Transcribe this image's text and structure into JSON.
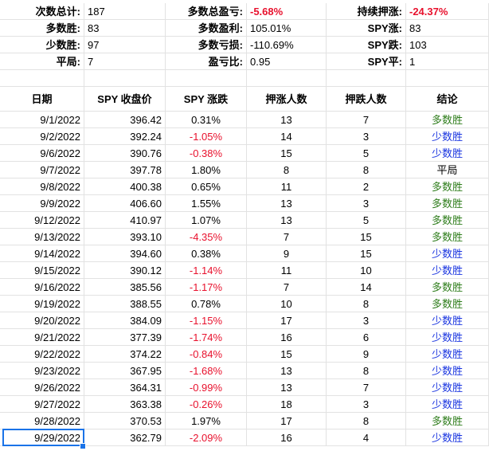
{
  "summary": [
    {
      "l1": "次数总计:",
      "v1": "187",
      "l2": "多数总盈亏:",
      "v2": "-5.68%",
      "l3": "持续押涨:",
      "v3": "-24.37%"
    },
    {
      "l1": "多数胜:",
      "v1": "83",
      "l2": "多数盈利:",
      "v2": "105.01%",
      "l3": "SPY涨:",
      "v3": "83"
    },
    {
      "l1": "少数胜:",
      "v1": "97",
      "l2": "多数亏损:",
      "v2": "-110.69%",
      "l3": "SPY跌:",
      "v3": "103"
    },
    {
      "l1": "平局:",
      "v1": "7",
      "l2": "盈亏比:",
      "v2": "0.95",
      "l3": "SPY平:",
      "v3": "1"
    }
  ],
  "table": {
    "headers": [
      "日期",
      "SPY 收盘价",
      "SPY 涨跌",
      "押涨人数",
      "押跌人数",
      "结论"
    ],
    "rows": [
      {
        "date": "9/1/2022",
        "close": "396.42",
        "change": "0.31%",
        "up": "13",
        "down": "7",
        "result": "多数胜"
      },
      {
        "date": "9/2/2022",
        "close": "392.24",
        "change": "-1.05%",
        "up": "14",
        "down": "3",
        "result": "少数胜"
      },
      {
        "date": "9/6/2022",
        "close": "390.76",
        "change": "-0.38%",
        "up": "15",
        "down": "5",
        "result": "少数胜"
      },
      {
        "date": "9/7/2022",
        "close": "397.78",
        "change": "1.80%",
        "up": "8",
        "down": "8",
        "result": "平局"
      },
      {
        "date": "9/8/2022",
        "close": "400.38",
        "change": "0.65%",
        "up": "11",
        "down": "2",
        "result": "多数胜"
      },
      {
        "date": "9/9/2022",
        "close": "406.60",
        "change": "1.55%",
        "up": "13",
        "down": "3",
        "result": "多数胜"
      },
      {
        "date": "9/12/2022",
        "close": "410.97",
        "change": "1.07%",
        "up": "13",
        "down": "5",
        "result": "多数胜"
      },
      {
        "date": "9/13/2022",
        "close": "393.10",
        "change": "-4.35%",
        "up": "7",
        "down": "15",
        "result": "多数胜"
      },
      {
        "date": "9/14/2022",
        "close": "394.60",
        "change": "0.38%",
        "up": "9",
        "down": "15",
        "result": "少数胜"
      },
      {
        "date": "9/15/2022",
        "close": "390.12",
        "change": "-1.14%",
        "up": "11",
        "down": "10",
        "result": "少数胜"
      },
      {
        "date": "9/16/2022",
        "close": "385.56",
        "change": "-1.17%",
        "up": "7",
        "down": "14",
        "result": "多数胜"
      },
      {
        "date": "9/19/2022",
        "close": "388.55",
        "change": "0.78%",
        "up": "10",
        "down": "8",
        "result": "多数胜"
      },
      {
        "date": "9/20/2022",
        "close": "384.09",
        "change": "-1.15%",
        "up": "17",
        "down": "3",
        "result": "少数胜"
      },
      {
        "date": "9/21/2022",
        "close": "377.39",
        "change": "-1.74%",
        "up": "16",
        "down": "6",
        "result": "少数胜"
      },
      {
        "date": "9/22/2022",
        "close": "374.22",
        "change": "-0.84%",
        "up": "15",
        "down": "9",
        "result": "少数胜"
      },
      {
        "date": "9/23/2022",
        "close": "367.95",
        "change": "-1.68%",
        "up": "13",
        "down": "8",
        "result": "少数胜"
      },
      {
        "date": "9/26/2022",
        "close": "364.31",
        "change": "-0.99%",
        "up": "13",
        "down": "7",
        "result": "少数胜"
      },
      {
        "date": "9/27/2022",
        "close": "363.38",
        "change": "-0.26%",
        "up": "18",
        "down": "3",
        "result": "少数胜"
      },
      {
        "date": "9/28/2022",
        "close": "370.53",
        "change": "1.97%",
        "up": "17",
        "down": "8",
        "result": "多数胜"
      },
      {
        "date": "9/29/2022",
        "close": "362.79",
        "change": "-2.09%",
        "up": "16",
        "down": "4",
        "result": "少数胜"
      }
    ]
  },
  "colors": {
    "negative": "#e8112d",
    "majority_win": "#2e7d1b",
    "minority_win": "#1a35e0",
    "selection": "#1a73e8",
    "gridline": "#e2e2e2"
  }
}
